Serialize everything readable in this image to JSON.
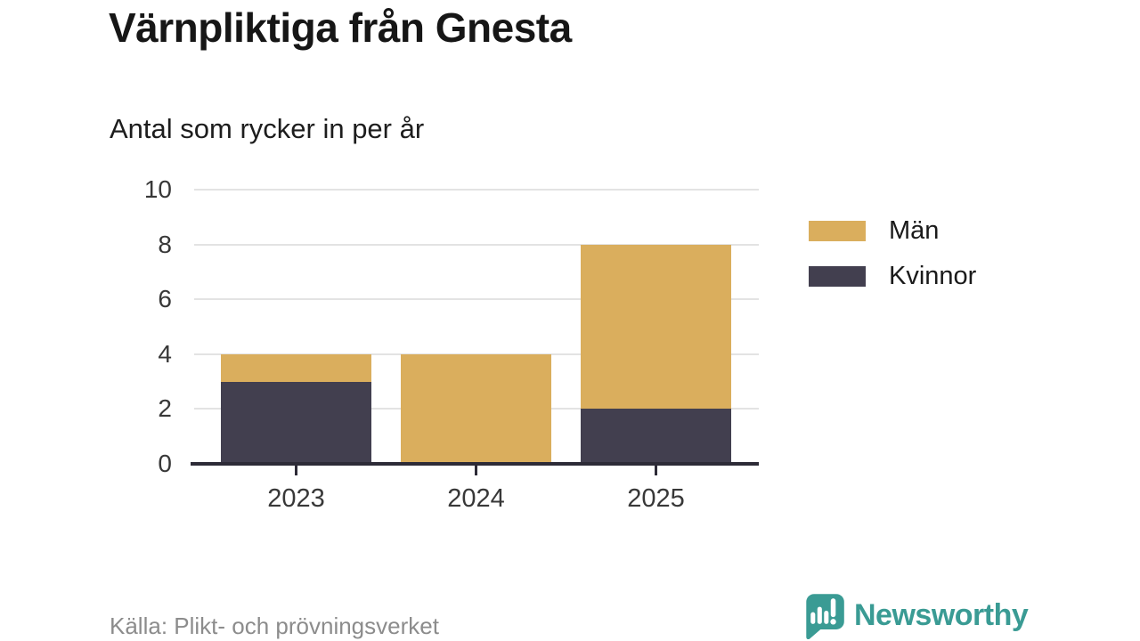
{
  "chart_data": {
    "type": "bar",
    "stacked": true,
    "title": "Värnpliktiga från Gnesta",
    "subtitle": "Antal som rycker in per år",
    "categories": [
      "2023",
      "2024",
      "2025"
    ],
    "series": [
      {
        "name": "Män",
        "color": "#daae5d",
        "values": [
          1,
          4,
          6
        ]
      },
      {
        "name": "Kvinnor",
        "color": "#423f4f",
        "values": [
          3,
          0,
          2
        ]
      }
    ],
    "stack_totals": [
      4,
      4,
      8
    ],
    "xlabel": "",
    "ylabel": "",
    "ylim": [
      0,
      10
    ],
    "yticks": [
      0,
      2,
      4,
      6,
      8,
      10
    ],
    "grid": true,
    "legend_position": "right"
  },
  "footer": {
    "source": "Källa: Plikt- och prövningsverket",
    "brand_name": "Newsworthy"
  },
  "colors": {
    "axis": "#2d2b37",
    "gridline": "#e3e3e3",
    "tick_label": "#383838",
    "source_gray": "#8c8c8c",
    "brand_teal": "#3a9b94"
  },
  "icons": {
    "brand_logo": "bar-chart-speech-bubble-icon"
  }
}
